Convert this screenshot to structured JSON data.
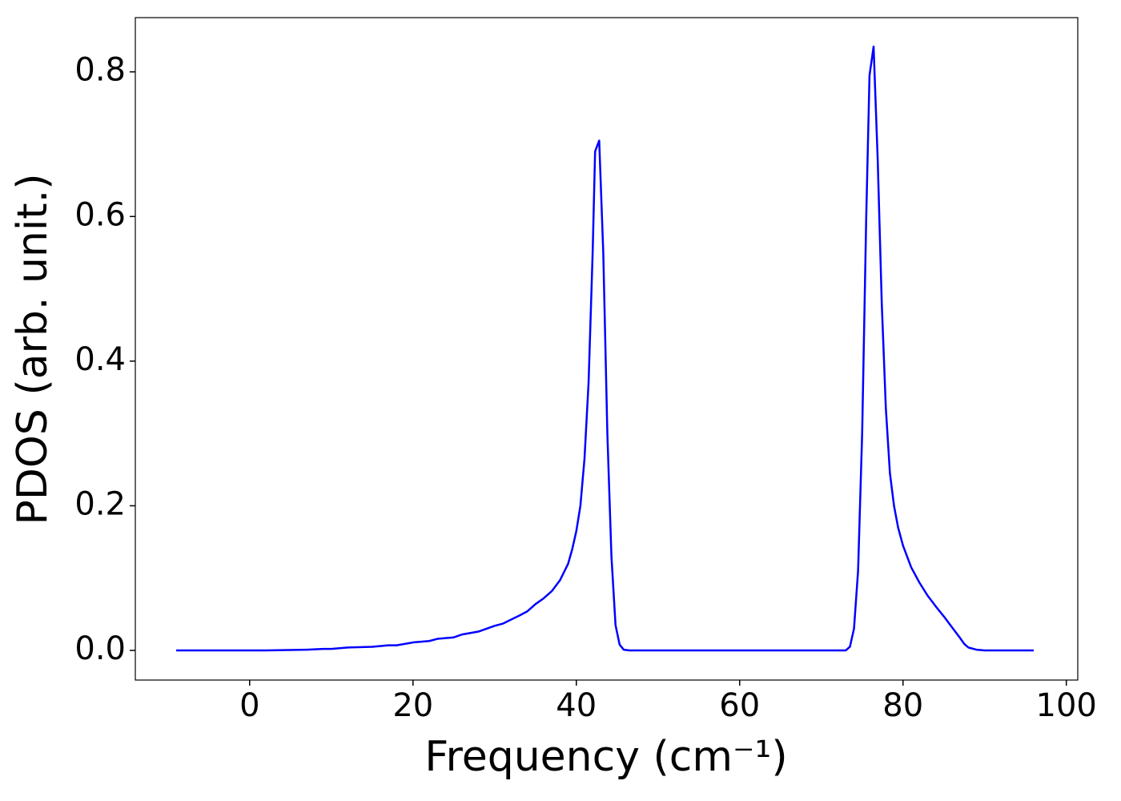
{
  "chart_data": {
    "type": "line",
    "xlabel": "Frequency (cm⁻¹)",
    "ylabel": "PDOS (arb. unit.)",
    "xlim": [
      -14.0,
      101.4
    ],
    "ylim": [
      -0.041,
      0.875
    ],
    "xticks": [
      0,
      20,
      40,
      60,
      80,
      100
    ],
    "yticks": [
      {
        "value": 0,
        "label": "0.0"
      },
      0.2,
      0.4,
      0.6,
      0.8
    ],
    "grid": false,
    "series": [
      {
        "color": "#0000ff",
        "x": [
          -9,
          2,
          7,
          9,
          10,
          12,
          15,
          17,
          18,
          20,
          22,
          23,
          25,
          26,
          28,
          30,
          31,
          33,
          34,
          35,
          36,
          37,
          38,
          39,
          39.5,
          40,
          40.5,
          41,
          41.5,
          42,
          42.3,
          42.8,
          43.3,
          43.8,
          44.3,
          44.8,
          45.3,
          45.8,
          46.5,
          73,
          73.5,
          74,
          74.5,
          75,
          75.5,
          75.9,
          76.4,
          76.9,
          77.4,
          77.9,
          78.4,
          78.9,
          79.4,
          80,
          81,
          82,
          83,
          84,
          85,
          86,
          87,
          87.5,
          88,
          89,
          90,
          96
        ],
        "values": [
          0,
          0,
          0.001,
          0.002,
          0.002,
          0.004,
          0.005,
          0.007,
          0.007,
          0.011,
          0.013,
          0.016,
          0.018,
          0.022,
          0.026,
          0.034,
          0.037,
          0.048,
          0.054,
          0.064,
          0.072,
          0.082,
          0.097,
          0.12,
          0.14,
          0.165,
          0.2,
          0.265,
          0.37,
          0.55,
          0.69,
          0.705,
          0.55,
          0.3,
          0.13,
          0.035,
          0.008,
          0.001,
          0,
          0,
          0.005,
          0.03,
          0.11,
          0.3,
          0.6,
          0.795,
          0.835,
          0.68,
          0.48,
          0.335,
          0.245,
          0.2,
          0.17,
          0.145,
          0.115,
          0.094,
          0.076,
          0.061,
          0.047,
          0.032,
          0.017,
          0.009,
          0.004,
          0.001,
          0,
          0
        ]
      }
    ]
  }
}
